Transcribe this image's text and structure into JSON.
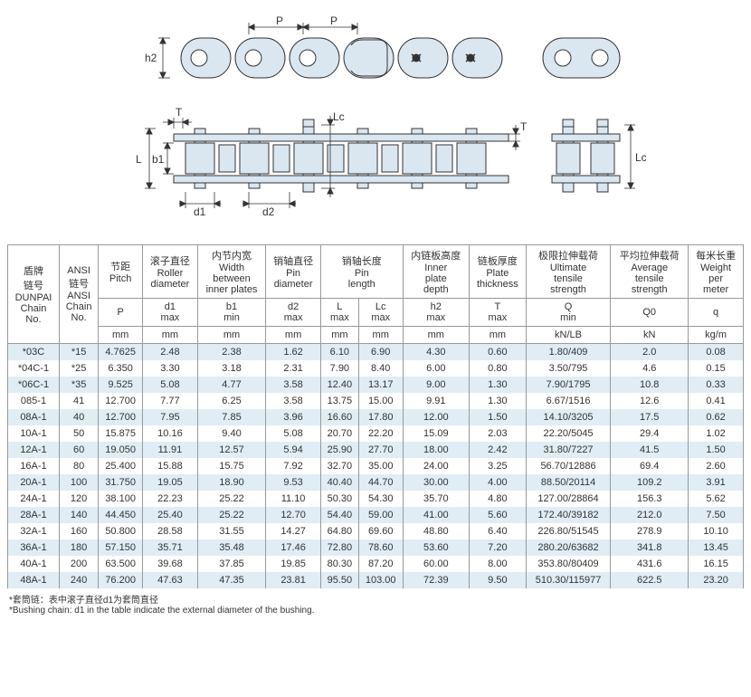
{
  "diagram": {
    "stroke": "#333333",
    "fill": "#dbe7f0",
    "labels": [
      "P",
      "P",
      "h2",
      "T",
      "L",
      "b1",
      "d1",
      "d2",
      "Lc",
      "T",
      "Lc"
    ]
  },
  "table": {
    "columns": [
      {
        "cn": "盾牌\n链号",
        "en": "DUNPAI\nChain\nNo.",
        "sym": "",
        "unit": ""
      },
      {
        "cn": "ANSI\n链号",
        "en": "ANSI\nChain\nNo.",
        "sym": "",
        "unit": ""
      },
      {
        "cn": "节距",
        "en": "Pitch",
        "sym": "P",
        "unit": "mm"
      },
      {
        "cn": "滚子直径",
        "en": "Roller\ndiameter",
        "sym": "d1\nmax",
        "unit": "mm"
      },
      {
        "cn": "内节内宽",
        "en": "Width\nbetween\ninner plates",
        "sym": "b1\nmin",
        "unit": "mm"
      },
      {
        "cn": "销轴直径",
        "en": "Pin\ndiameter",
        "sym": "d2\nmax",
        "unit": "mm"
      },
      {
        "cn": "销轴长度",
        "en": "Pin\nlength",
        "sym": "L\nmax",
        "unit": "mm",
        "span": 2,
        "sym2": "Lc\nmax",
        "unit2": "mm"
      },
      {
        "cn": "内链板高度",
        "en": "Inner\nplate\ndepth",
        "sym": "h2\nmax",
        "unit": "mm"
      },
      {
        "cn": "链板厚度",
        "en": "Plate\nthickness",
        "sym": "T\nmax",
        "unit": "mm"
      },
      {
        "cn": "极限拉伸载荷",
        "en": "Ultimate\ntensile\nstrength",
        "sym": "Q\nmin",
        "unit": "kN/LB"
      },
      {
        "cn": "平均拉伸载荷",
        "en": "Average\ntensile\nstrength",
        "sym": "Q0",
        "unit": "kN"
      },
      {
        "cn": "每米长重",
        "en": "Weight\nper\nmeter",
        "sym": "q",
        "unit": "kg/m"
      }
    ],
    "rows": [
      [
        "*03C",
        "*15",
        "4.7625",
        "2.48",
        "2.38",
        "1.62",
        "6.10",
        "6.90",
        "4.30",
        "0.60",
        "1.80/409",
        "2.0",
        "0.08"
      ],
      [
        "*04C-1",
        "*25",
        "6.350",
        "3.30",
        "3.18",
        "2.31",
        "7.90",
        "8.40",
        "6.00",
        "0.80",
        "3.50/795",
        "4.6",
        "0.15"
      ],
      [
        "*06C-1",
        "*35",
        "9.525",
        "5.08",
        "4.77",
        "3.58",
        "12.40",
        "13.17",
        "9.00",
        "1.30",
        "7.90/1795",
        "10.8",
        "0.33"
      ],
      [
        "085-1",
        "41",
        "12.700",
        "7.77",
        "6.25",
        "3.58",
        "13.75",
        "15.00",
        "9.91",
        "1.30",
        "6.67/1516",
        "12.6",
        "0.41"
      ],
      [
        "08A-1",
        "40",
        "12.700",
        "7.95",
        "7.85",
        "3.96",
        "16.60",
        "17.80",
        "12.00",
        "1.50",
        "14.10/3205",
        "17.5",
        "0.62"
      ],
      [
        "10A-1",
        "50",
        "15.875",
        "10.16",
        "9.40",
        "5.08",
        "20.70",
        "22.20",
        "15.09",
        "2.03",
        "22.20/5045",
        "29.4",
        "1.02"
      ],
      [
        "12A-1",
        "60",
        "19.050",
        "11.91",
        "12.57",
        "5.94",
        "25.90",
        "27.70",
        "18.00",
        "2.42",
        "31.80/7227",
        "41.5",
        "1.50"
      ],
      [
        "16A-1",
        "80",
        "25.400",
        "15.88",
        "15.75",
        "7.92",
        "32.70",
        "35.00",
        "24.00",
        "3.25",
        "56.70/12886",
        "69.4",
        "2.60"
      ],
      [
        "20A-1",
        "100",
        "31.750",
        "19.05",
        "18.90",
        "9.53",
        "40.40",
        "44.70",
        "30.00",
        "4.00",
        "88.50/20114",
        "109.2",
        "3.91"
      ],
      [
        "24A-1",
        "120",
        "38.100",
        "22.23",
        "25.22",
        "11.10",
        "50.30",
        "54.30",
        "35.70",
        "4.80",
        "127.00/28864",
        "156.3",
        "5.62"
      ],
      [
        "28A-1",
        "140",
        "44.450",
        "25.40",
        "25.22",
        "12.70",
        "54.40",
        "59.00",
        "41.00",
        "5.60",
        "172.40/39182",
        "212.0",
        "7.50"
      ],
      [
        "32A-1",
        "160",
        "50.800",
        "28.58",
        "31.55",
        "14.27",
        "64.80",
        "69.60",
        "48.80",
        "6.40",
        "226.80/51545",
        "278.9",
        "10.10"
      ],
      [
        "36A-1",
        "180",
        "57.150",
        "35.71",
        "35.48",
        "17.46",
        "72.80",
        "78.60",
        "53.60",
        "7.20",
        "280.20/63682",
        "341.8",
        "13.45"
      ],
      [
        "40A-1",
        "200",
        "63.500",
        "39.68",
        "37.85",
        "19.85",
        "80.30",
        "87.20",
        "60.00",
        "8.00",
        "353.80/80409",
        "431.6",
        "16.15"
      ],
      [
        "48A-1",
        "240",
        "76.200",
        "47.63",
        "47.35",
        "23.81",
        "95.50",
        "103.00",
        "72.39",
        "9.50",
        "510.30/115977",
        "622.5",
        "23.20"
      ]
    ]
  },
  "footnotes": {
    "cn": "*套筒链：表中滚子直径d1为套筒直径",
    "en": "*Bushing chain: d1 in the table indicate the external diameter of the bushing."
  }
}
